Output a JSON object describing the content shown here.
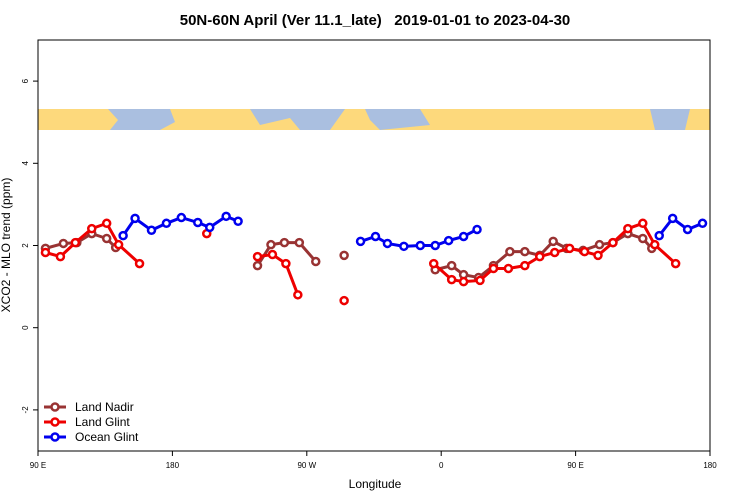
{
  "chart_data": {
    "type": "line",
    "title": "50N-60N April (Ver 11.1_late)   2019-01-01 to 2023-04-30",
    "x_label": "Longitude",
    "y_label": "XCO2 - MLO trend (ppm)",
    "xlim": [
      90,
      540
    ],
    "xticks": [
      {
        "value": 90,
        "label": "90 E"
      },
      180,
      {
        "value": 270,
        "label": "90 W"
      },
      {
        "value": 360,
        "label": "0"
      },
      {
        "value": 450,
        "label": "90 E"
      },
      {
        "value": 540,
        "label": "180"
      }
    ],
    "ylim": [
      -3,
      7
    ],
    "yticks": [
      -2,
      0,
      2,
      4,
      6
    ],
    "legend": "bottom-left",
    "series": [
      {
        "name": "Land Nadir",
        "color": "#993333",
        "x": [
          95,
          107,
          116,
          126,
          136,
          142,
          190,
          237,
          246,
          255,
          265,
          276,
          285,
          295,
          325,
          356,
          367,
          375,
          385,
          395,
          406,
          416,
          426,
          435,
          444,
          455,
          466,
          475,
          485,
          495,
          501
        ],
        "values": [
          1.93,
          2.05,
          2.07,
          2.29,
          2.17,
          1.95,
          null,
          1.51,
          2.02,
          2.07,
          2.07,
          1.61,
          null,
          1.76,
          null,
          1.41,
          1.51,
          1.29,
          1.22,
          1.51,
          1.85,
          1.85,
          1.76,
          2.1,
          1.93,
          1.88,
          2.02,
          2.07,
          2.29,
          2.17,
          1.93
        ]
      },
      {
        "name": "Land Glint",
        "color": "#ee0000",
        "x": [
          95,
          105,
          115,
          126,
          136,
          144,
          158,
          180,
          203,
          220,
          237,
          247,
          256,
          264,
          280,
          295,
          325,
          355,
          367,
          375,
          386,
          395,
          405,
          416,
          426,
          436,
          446,
          456,
          465,
          475,
          485,
          495,
          503,
          517
        ],
        "values": [
          1.83,
          1.73,
          2.07,
          2.41,
          2.54,
          2.02,
          1.56,
          null,
          2.29,
          null,
          1.73,
          1.78,
          1.56,
          0.8,
          null,
          0.66,
          null,
          1.56,
          1.17,
          1.12,
          1.15,
          1.44,
          1.44,
          1.51,
          1.73,
          1.83,
          1.93,
          1.85,
          1.76,
          2.07,
          2.41,
          2.54,
          2.02,
          1.56
        ]
      },
      {
        "name": "Ocean Glint",
        "color": "#0000ee",
        "x": [
          147,
          155,
          166,
          176,
          186,
          197,
          205,
          216,
          224,
          265,
          306,
          316,
          324,
          335,
          346,
          356,
          365,
          375,
          384,
          445,
          506,
          515,
          525,
          535
        ],
        "values": [
          2.24,
          2.66,
          2.37,
          2.54,
          2.68,
          2.56,
          2.44,
          2.71,
          2.59,
          null,
          2.1,
          2.22,
          2.05,
          1.98,
          2.0,
          2.0,
          2.12,
          2.22,
          2.39,
          null,
          2.24,
          2.66,
          2.39,
          2.54
        ]
      }
    ]
  }
}
